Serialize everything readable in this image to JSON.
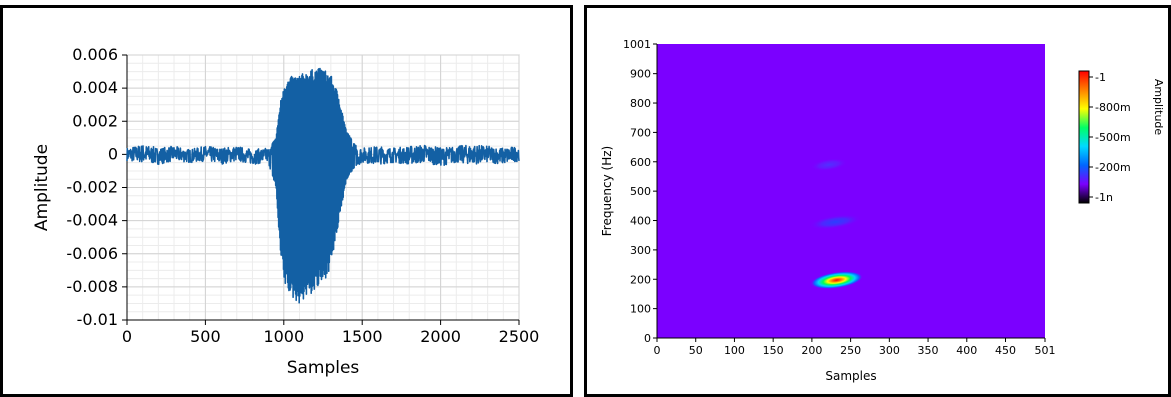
{
  "chart_data": [
    {
      "type": "line",
      "title": "",
      "xlabel": "Samples",
      "ylabel": "Amplitude",
      "xlim": [
        0,
        2500
      ],
      "ylim": [
        -0.01,
        0.006
      ],
      "x_ticks": [
        "0",
        "500",
        "1000",
        "1500",
        "2000",
        "2500"
      ],
      "y_ticks": [
        "0.006",
        "0.004",
        "0.002",
        "0",
        "-0.002",
        "-0.004",
        "-0.006",
        "-0.008",
        "-0.01"
      ],
      "grid": true,
      "line_color": "#1360a4",
      "series": [
        {
          "x": [
            0,
            100,
            200,
            300,
            400,
            500,
            600,
            700,
            800,
            900,
            950,
            975,
            1000,
            1050,
            1100,
            1150,
            1200,
            1250,
            1300,
            1350,
            1400,
            1450,
            1500,
            1600,
            1700,
            1800,
            1900,
            2000,
            2100,
            2200,
            2300,
            2400,
            2500
          ],
          "upper": [
            0.0004,
            0.0006,
            0.0004,
            0.0005,
            0.0003,
            0.0005,
            0.0004,
            0.0005,
            0.0003,
            0.0004,
            0.001,
            0.003,
            0.0043,
            0.0047,
            0.0048,
            0.005,
            0.0052,
            0.0052,
            0.0048,
            0.0036,
            0.0014,
            0.0007,
            0.0004,
            0.0005,
            0.0004,
            0.0005,
            0.0006,
            0.0004,
            0.0005,
            0.0006,
            0.0005,
            0.0004,
            0.0005
          ],
          "lower": [
            -0.0004,
            -0.0005,
            -0.0006,
            -0.0004,
            -0.0005,
            -0.0004,
            -0.0006,
            -0.0004,
            -0.0006,
            -0.0005,
            -0.002,
            -0.0058,
            -0.0078,
            -0.0087,
            -0.009,
            -0.0086,
            -0.0083,
            -0.0078,
            -0.0068,
            -0.0042,
            -0.0015,
            -0.0008,
            -0.0005,
            -0.0006,
            -0.0005,
            -0.0006,
            -0.0005,
            -0.0007,
            -0.0005,
            -0.0006,
            -0.0005,
            -0.0006,
            -0.0004
          ]
        }
      ]
    },
    {
      "type": "heatmap",
      "title": "",
      "xlabel": "Samples",
      "ylabel": "Frequency (Hz)",
      "xlim": [
        0,
        501
      ],
      "ylim": [
        0,
        1001
      ],
      "x_ticks": [
        "0",
        "50",
        "100",
        "150",
        "200",
        "250",
        "300",
        "350",
        "400",
        "450",
        "501"
      ],
      "y_ticks": [
        "0",
        "100",
        "200",
        "300",
        "400",
        "500",
        "600",
        "700",
        "800",
        "900",
        "1001"
      ],
      "background_color": "#7b00ff",
      "blobs": [
        {
          "x_center": 232,
          "y_center": 197,
          "x_width": 68,
          "y_height": 55,
          "peak": 1.0
        },
        {
          "x_center": 230,
          "y_center": 395,
          "x_width": 68,
          "y_height": 45,
          "peak": 0.22
        },
        {
          "x_center": 222,
          "y_center": 590,
          "x_width": 48,
          "y_height": 40,
          "peak": 0.1
        }
      ],
      "colorbar": {
        "label": "Amplitude",
        "ticks": [
          "-1",
          "-800m",
          "-500m",
          "-200m",
          "-1n"
        ],
        "colors": [
          "#000000",
          "#7b00ff",
          "#0066ff",
          "#00d9ff",
          "#00ff66",
          "#ffff00",
          "#ff8000",
          "#ff0000"
        ]
      }
    }
  ]
}
